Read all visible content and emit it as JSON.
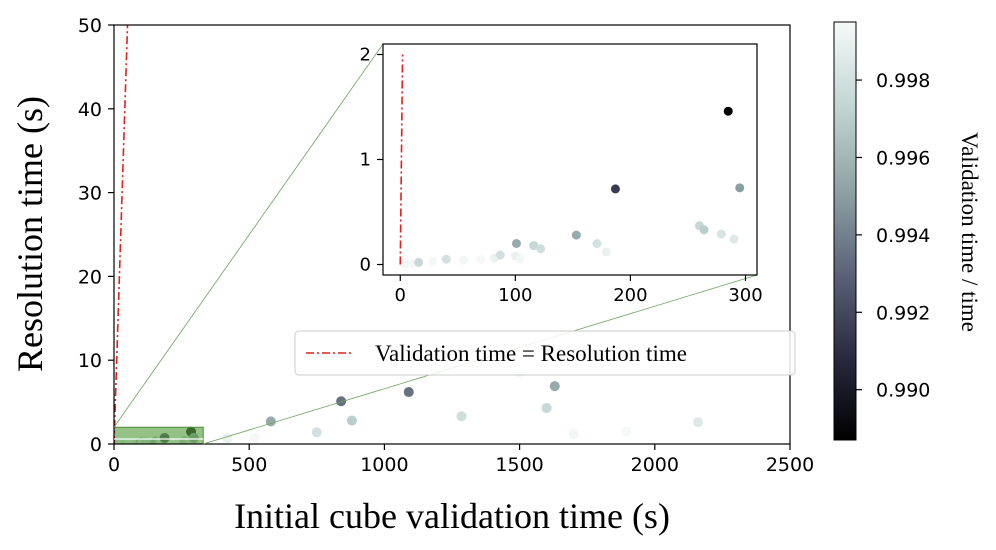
{
  "chart_data": {
    "type": "scatter",
    "xlabel": "Initial cube validation time (s)",
    "ylabel": "Resolution time (s)",
    "xlim": [
      0,
      2500
    ],
    "ylim": [
      0,
      50
    ],
    "xticks": [
      0,
      500,
      1000,
      1500,
      2000,
      2500
    ],
    "yticks": [
      0,
      10,
      20,
      30,
      40,
      50
    ],
    "legend": {
      "position": "center-right",
      "entries": [
        "Validation time = Resolution time"
      ]
    },
    "reference_line": {
      "name": "Validation time = Resolution time",
      "color": "#e0201a",
      "style": "dash-dot",
      "slope": 1
    },
    "colorbar": {
      "label": "Validation time / time",
      "range": [
        0.9887,
        0.9995
      ],
      "ticks": [
        0.99,
        0.992,
        0.994,
        0.996,
        0.998
      ],
      "tick_labels": [
        "0.990",
        "0.992",
        "0.994",
        "0.996",
        "0.998"
      ],
      "colormap": [
        "#000000",
        "#2a2a40",
        "#5c6378",
        "#8fa3a6",
        "#c2d6d3",
        "#f6faf9"
      ]
    },
    "points": [
      {
        "x": 4,
        "y": 0.01,
        "c": 0.9993
      },
      {
        "x": 10,
        "y": 0.01,
        "c": 0.9994
      },
      {
        "x": 16,
        "y": 0.02,
        "c": 0.9975
      },
      {
        "x": 28,
        "y": 0.03,
        "c": 0.9994
      },
      {
        "x": 40,
        "y": 0.05,
        "c": 0.998
      },
      {
        "x": 55,
        "y": 0.04,
        "c": 0.9993
      },
      {
        "x": 70,
        "y": 0.05,
        "c": 0.9994
      },
      {
        "x": 82,
        "y": 0.06,
        "c": 0.999
      },
      {
        "x": 87,
        "y": 0.09,
        "c": 0.998
      },
      {
        "x": 100,
        "y": 0.08,
        "c": 0.999
      },
      {
        "x": 101,
        "y": 0.2,
        "c": 0.9955
      },
      {
        "x": 104,
        "y": 0.05,
        "c": 0.9993
      },
      {
        "x": 116,
        "y": 0.18,
        "c": 0.9975
      },
      {
        "x": 122,
        "y": 0.15,
        "c": 0.9978
      },
      {
        "x": 153,
        "y": 0.28,
        "c": 0.9955
      },
      {
        "x": 171,
        "y": 0.2,
        "c": 0.998
      },
      {
        "x": 179,
        "y": 0.12,
        "c": 0.999
      },
      {
        "x": 187,
        "y": 0.72,
        "c": 0.9915
      },
      {
        "x": 260,
        "y": 0.37,
        "c": 0.9975
      },
      {
        "x": 264,
        "y": 0.33,
        "c": 0.997
      },
      {
        "x": 279,
        "y": 0.29,
        "c": 0.9982
      },
      {
        "x": 285,
        "y": 1.46,
        "c": 0.9887
      },
      {
        "x": 290,
        "y": 0.24,
        "c": 0.9985
      },
      {
        "x": 295,
        "y": 0.73,
        "c": 0.995
      },
      {
        "x": 420,
        "y": 0.7,
        "c": 0.999
      },
      {
        "x": 520,
        "y": 0.7,
        "c": 0.9994
      },
      {
        "x": 580,
        "y": 2.7,
        "c": 0.9955
      },
      {
        "x": 750,
        "y": 1.4,
        "c": 0.998
      },
      {
        "x": 840,
        "y": 5.1,
        "c": 0.9935
      },
      {
        "x": 880,
        "y": 2.8,
        "c": 0.997
      },
      {
        "x": 1090,
        "y": 6.2,
        "c": 0.9935
      },
      {
        "x": 1285,
        "y": 3.3,
        "c": 0.9978
      },
      {
        "x": 1500,
        "y": 8.6,
        "c": 0.999
      },
      {
        "x": 1600,
        "y": 4.3,
        "c": 0.9975
      },
      {
        "x": 1630,
        "y": 6.9,
        "c": 0.9955
      },
      {
        "x": 1700,
        "y": 1.2,
        "c": 0.9993
      },
      {
        "x": 1895,
        "y": 1.5,
        "c": 0.9994
      },
      {
        "x": 2160,
        "y": 2.6,
        "c": 0.9985
      }
    ],
    "inset": {
      "xlim": [
        -15,
        310
      ],
      "ylim": [
        -0.1,
        2.1
      ],
      "xticks": [
        0,
        100,
        200,
        300
      ],
      "yticks": [
        0,
        1,
        2
      ],
      "zoom_region": {
        "x": [
          0,
          330
        ],
        "y": [
          0,
          2
        ]
      }
    }
  }
}
